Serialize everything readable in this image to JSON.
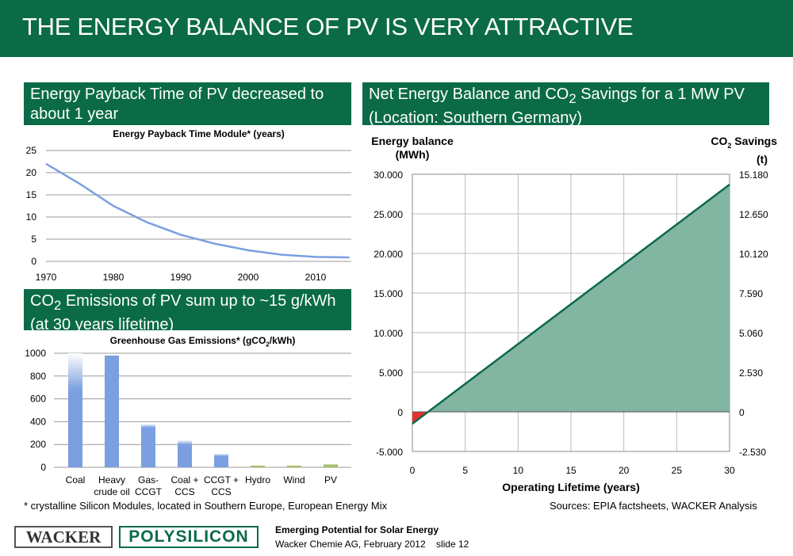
{
  "title": "THE ENERGY BALANCE OF PV IS VERY ATTRACTIVE",
  "section1": "Energy Payback Time of PV decreased to about 1 year",
  "section2_pre": "CO",
  "section2_sub": "2",
  "section2_post": " Emissions of PV sum up to ~15 g/kWh (at 30 years lifetime)",
  "section3_pre": "Net Energy Balance and CO",
  "section3_sub": "2",
  "section3_post": " Savings for a 1 MW PV (Location: Southern Germany)",
  "footnote": "* crystalline Silicon Modules, located in Southern Europe, European Energy Mix",
  "sources": "Sources: EPIA factsheets, WACKER Analysis",
  "logo1": "WACKER",
  "logo2": "POLYSILICON",
  "footer_title": "Emerging Potential for Solar Energy",
  "footer_line": "Wacker Chemie AG, February 2012    slide 12",
  "colors": {
    "brand": "#0b6b47",
    "bar": "#7b9fe0",
    "renewable": "#a8bf6a",
    "fill": "#82b5a2",
    "negative": "#e53030"
  },
  "chart_data": [
    {
      "type": "line",
      "title": "Energy Payback Time Module* (years)",
      "x": [
        1970,
        1975,
        1980,
        1985,
        1990,
        1995,
        2000,
        2005,
        2010,
        2015
      ],
      "values": [
        22,
        17.5,
        12.5,
        8.8,
        6,
        4,
        2.5,
        1.5,
        1,
        0.9
      ],
      "ylim": [
        0,
        25
      ],
      "yticks": [
        0,
        5,
        10,
        15,
        20,
        25
      ],
      "xticks": [
        1970,
        1980,
        1990,
        2000,
        2010
      ],
      "grid": true
    },
    {
      "type": "bar",
      "title_pre": "Greenhouse Gas Emissions* (gCO",
      "title_sub": "2",
      "title_post": "/kWh)",
      "categories": [
        [
          "Coal"
        ],
        [
          "Heavy",
          "crude oil"
        ],
        [
          "Gas-",
          "CCGT"
        ],
        [
          "Coal +",
          "CCS"
        ],
        [
          "CCGT +",
          "CCS"
        ],
        [
          "Hydro"
        ],
        [
          "Wind"
        ],
        [
          "PV"
        ]
      ],
      "values_low": [
        680,
        980,
        350,
        200,
        100,
        15,
        15,
        25
      ],
      "values_high": [
        1000,
        980,
        380,
        240,
        120,
        15,
        15,
        25
      ],
      "ylim": [
        0,
        1000
      ],
      "yticks": [
        0,
        200,
        400,
        600,
        800,
        1000
      ]
    },
    {
      "type": "area",
      "ylabel_left": [
        "Energy balance",
        "(MWh)"
      ],
      "ylabel_right_pre": "CO",
      "ylabel_right_sub": "2",
      "ylabel_right_post": " Savings",
      "ylabel_right_unit": "(t)",
      "xlabel": "Operating Lifetime (years)",
      "x": [
        0,
        30
      ],
      "values": [
        -1500,
        28700
      ],
      "xlim": [
        0,
        30
      ],
      "ylim": [
        -5000,
        30000
      ],
      "xticks": [
        "0",
        "5",
        "10",
        "15",
        "20",
        "25",
        "30"
      ],
      "yticks_left": [
        "-5.000",
        "0",
        "5.000",
        "10.000",
        "15.000",
        "20.000",
        "25.000",
        "30.000"
      ],
      "yticks_right": [
        "-2.530",
        "0",
        "2.530",
        "5.060",
        "7.590",
        "10.120",
        "12.650",
        "15.180"
      ]
    }
  ]
}
